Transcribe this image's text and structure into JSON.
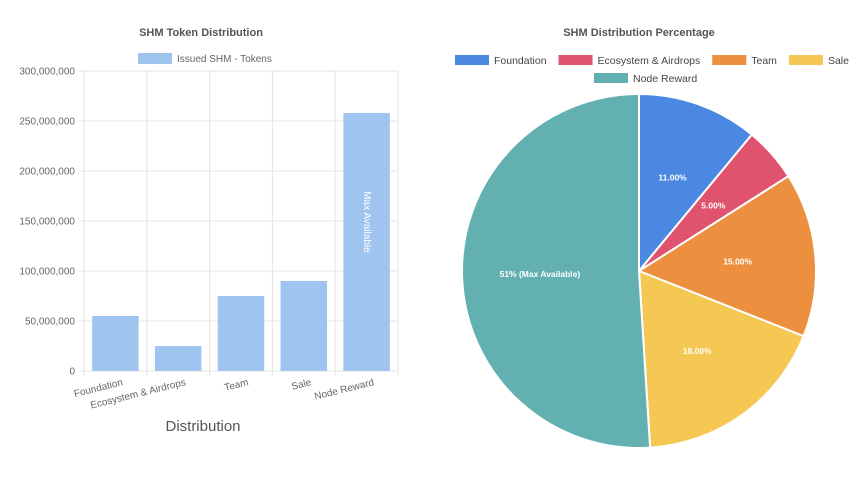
{
  "chart_data": [
    {
      "type": "bar",
      "title": "SHM Token Distribution",
      "legend": "Issued SHM - Tokens",
      "legend_color": "#a0c4f0",
      "categories": [
        "Foundation",
        "Ecosystem & Airdrops",
        "Team",
        "Sale",
        "Node Reward"
      ],
      "values": [
        55000000,
        25000000,
        75000000,
        90000000,
        258000000
      ],
      "bar_annotations": [
        "",
        "",
        "",
        "",
        "Max Available"
      ],
      "xlabel": "Distribution",
      "ylabel": "",
      "ylim": [
        0,
        300000000
      ],
      "yticks": [
        0,
        50000000,
        100000000,
        150000000,
        200000000,
        250000000,
        300000000
      ],
      "ytick_labels": [
        "0",
        "50,000,000",
        "100,000,000",
        "150,000,000",
        "200,000,000",
        "250,000,000",
        "300,000,000"
      ],
      "grid": true
    },
    {
      "type": "pie",
      "title": "SHM Distribution Percentage",
      "legend_position": "top",
      "labels": [
        "Foundation",
        "Ecosystem & Airdrops",
        "Team",
        "Sale",
        "Node Reward"
      ],
      "values": [
        11,
        5,
        15,
        18,
        51
      ],
      "slice_labels": [
        "11.00%",
        "5.00%",
        "15.00%",
        "18.00%",
        "51% (Max Available)"
      ],
      "colors": [
        "#4a88e2",
        "#e0536e",
        "#ec8f3e",
        "#f5c853",
        "#63b0b1"
      ]
    }
  ]
}
